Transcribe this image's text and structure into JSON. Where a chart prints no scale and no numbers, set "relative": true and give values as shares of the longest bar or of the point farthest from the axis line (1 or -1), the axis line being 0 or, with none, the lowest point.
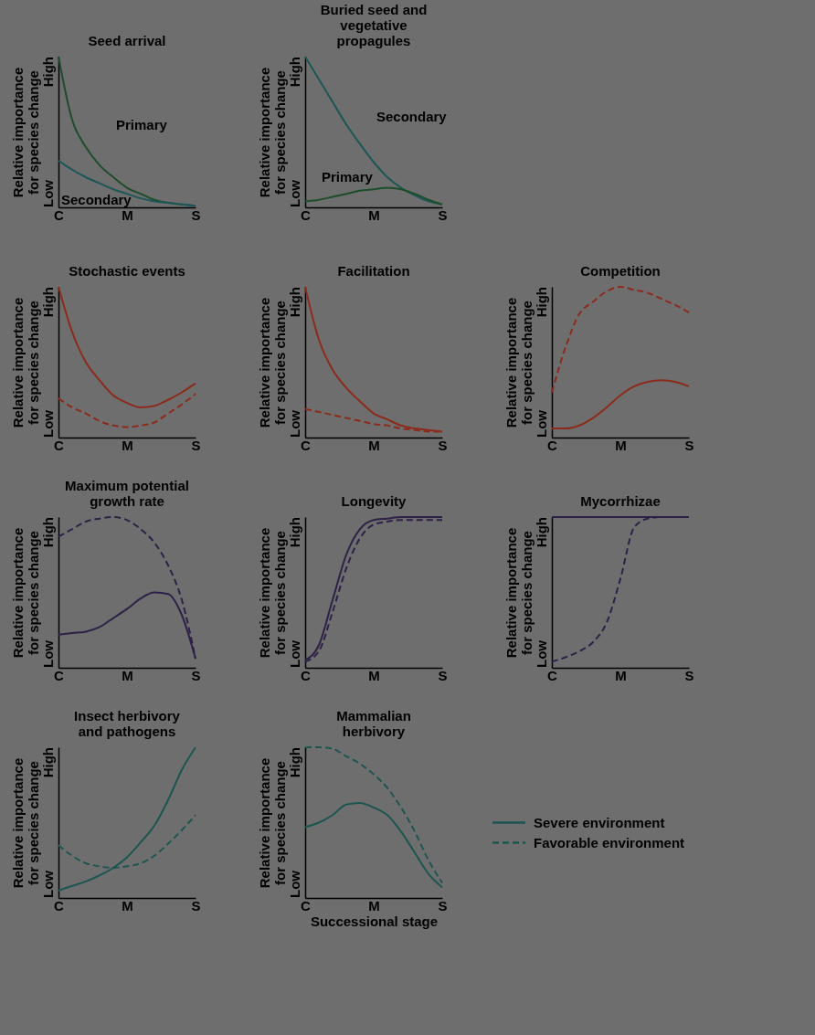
{
  "chart_data": [
    {
      "type": "line",
      "title": "Seed arrival",
      "ylabel": "Relative importance for species change",
      "relative": true,
      "annotations": [
        "Low",
        "High"
      ],
      "categories": [
        "C",
        null,
        null,
        null,
        null,
        "M",
        null,
        null,
        null,
        null,
        "S"
      ],
      "series": [
        {
          "name": "Primary",
          "color": "#1e4d2b",
          "values": [
            1,
            0.58,
            0.4,
            0.28,
            0.2,
            0.13,
            0.09,
            0.05,
            0.03,
            0.02,
            0.01
          ]
        },
        {
          "name": "Secondary",
          "color": "#1d5656",
          "values": [
            0.31,
            0.25,
            0.2,
            0.16,
            0.12,
            0.09,
            0.06,
            0.04,
            0.03,
            0.02,
            0.01
          ]
        }
      ]
    },
    {
      "type": "line",
      "title": "Buried seed and vegetative propagules",
      "ylabel": "Relative importance for species change",
      "relative": true,
      "annotations": [
        "Low",
        "High"
      ],
      "categories": [
        "C",
        null,
        null,
        null,
        null,
        "M",
        null,
        null,
        null,
        null,
        "S"
      ],
      "series": [
        {
          "name": "Secondary",
          "color": "#1d5656",
          "values": [
            1,
            0.85,
            0.7,
            0.55,
            0.42,
            0.3,
            0.2,
            0.13,
            0.08,
            0.04,
            0.02
          ]
        },
        {
          "name": "Primary",
          "color": "#1e4d2b",
          "values": [
            0.04,
            0.05,
            0.07,
            0.09,
            0.11,
            0.12,
            0.13,
            0.12,
            0.09,
            0.05,
            0.02
          ]
        }
      ]
    },
    {
      "type": "line",
      "title": "Stochastic events",
      "ylabel": "Relative importance for species change",
      "relative": true,
      "annotations": [
        "Low",
        "High"
      ],
      "categories": [
        "C",
        null,
        null,
        null,
        null,
        "M",
        null,
        null,
        null,
        null,
        "S"
      ],
      "series": [
        {
          "color": "#8c2b1c",
          "line_style": "solid",
          "values": [
            1,
            0.7,
            0.5,
            0.38,
            0.28,
            0.23,
            0.2,
            0.21,
            0.25,
            0.3,
            0.36
          ]
        },
        {
          "color": "#8c2b1c",
          "line_style": "dashed",
          "values": [
            0.26,
            0.2,
            0.16,
            0.11,
            0.08,
            0.07,
            0.08,
            0.1,
            0.16,
            0.22,
            0.29
          ]
        }
      ]
    },
    {
      "type": "line",
      "title": "Facilitation",
      "ylabel": "Relative importance for species change",
      "relative": true,
      "annotations": [
        "Low",
        "High"
      ],
      "categories": [
        "C",
        null,
        null,
        null,
        null,
        "M",
        null,
        null,
        null,
        null,
        "S"
      ],
      "series": [
        {
          "color": "#8c2b1c",
          "line_style": "solid",
          "values": [
            1,
            0.65,
            0.45,
            0.33,
            0.24,
            0.16,
            0.12,
            0.08,
            0.06,
            0.05,
            0.04
          ]
        },
        {
          "color": "#8c2b1c",
          "line_style": "dashed",
          "values": [
            0.19,
            0.17,
            0.15,
            0.13,
            0.11,
            0.09,
            0.08,
            0.06,
            0.05,
            0.04,
            0.04
          ]
        }
      ]
    },
    {
      "type": "line",
      "title": "Competition",
      "ylabel": "Relative importance for species change",
      "relative": true,
      "annotations": [
        "Low",
        "High"
      ],
      "categories": [
        "C",
        null,
        null,
        null,
        null,
        "M",
        null,
        null,
        null,
        null,
        "S"
      ],
      "series": [
        {
          "color": "#8c2b1c",
          "line_style": "solid",
          "values": [
            0.06,
            0.06,
            0.08,
            0.13,
            0.2,
            0.28,
            0.34,
            0.37,
            0.38,
            0.37,
            0.34
          ]
        },
        {
          "color": "#8c2b1c",
          "line_style": "dashed",
          "values": [
            0.3,
            0.6,
            0.82,
            0.9,
            0.97,
            1,
            0.98,
            0.96,
            0.92,
            0.88,
            0.83
          ]
        }
      ]
    },
    {
      "type": "line",
      "title": "Maximum potential growth rate",
      "ylabel": "Relative importance for species change",
      "relative": true,
      "annotations": [
        "Low",
        "High"
      ],
      "categories": [
        "C",
        null,
        null,
        null,
        null,
        "M",
        null,
        null,
        null,
        null,
        "S"
      ],
      "series": [
        {
          "color": "#2e2147",
          "line_style": "solid",
          "values": [
            0.22,
            0.23,
            0.24,
            0.27,
            0.33,
            0.39,
            0.46,
            0.5,
            0.49,
            0.35,
            0.06
          ]
        },
        {
          "color": "#2e2147",
          "line_style": "dashed",
          "values": [
            0.87,
            0.92,
            0.97,
            0.99,
            1,
            0.98,
            0.92,
            0.83,
            0.68,
            0.45,
            0.06
          ]
        }
      ]
    },
    {
      "type": "line",
      "title": "Longevity",
      "ylabel": "Relative importance for species change",
      "relative": true,
      "annotations": [
        "Low",
        "High"
      ],
      "categories": [
        "C",
        null,
        null,
        null,
        null,
        "M",
        null,
        null,
        null,
        null,
        "S"
      ],
      "series": [
        {
          "color": "#2e2147",
          "line_style": "solid",
          "values": [
            0.05,
            0.15,
            0.45,
            0.75,
            0.92,
            0.98,
            0.99,
            1,
            1,
            1,
            1
          ]
        },
        {
          "color": "#2e2147",
          "line_style": "dashed",
          "values": [
            0.04,
            0.11,
            0.37,
            0.66,
            0.86,
            0.95,
            0.97,
            0.98,
            0.98,
            0.98,
            0.98
          ]
        }
      ]
    },
    {
      "type": "line",
      "title": "Mycorrhizae",
      "ylabel": "Relative importance for species change",
      "relative": true,
      "annotations": [
        "Low",
        "High"
      ],
      "categories": [
        "C",
        null,
        null,
        null,
        null,
        "M",
        null,
        null,
        null,
        null,
        "S"
      ],
      "series": [
        {
          "color": "#2e2147",
          "line_style": "solid",
          "values": [
            1,
            1,
            1,
            1,
            1,
            1,
            1,
            1,
            1,
            1,
            1
          ]
        },
        {
          "color": "#2e2147",
          "line_style": "dashed",
          "values": [
            0.04,
            0.07,
            0.11,
            0.17,
            0.3,
            0.59,
            0.93,
            0.99,
            1,
            1,
            1
          ]
        }
      ]
    },
    {
      "type": "line",
      "title": "Insect herbivory and pathogens",
      "ylabel": "Relative importance for species change",
      "relative": true,
      "annotations": [
        "Low",
        "High"
      ],
      "categories": [
        "C",
        null,
        null,
        null,
        null,
        "M",
        null,
        null,
        null,
        null,
        "S"
      ],
      "series": [
        {
          "color": "#1d5550",
          "line_style": "solid",
          "values": [
            0.05,
            0.08,
            0.11,
            0.15,
            0.2,
            0.27,
            0.37,
            0.48,
            0.65,
            0.85,
            1
          ]
        },
        {
          "color": "#1d5550",
          "line_style": "dashed",
          "values": [
            0.35,
            0.28,
            0.23,
            0.21,
            0.2,
            0.21,
            0.23,
            0.28,
            0.36,
            0.45,
            0.55
          ]
        }
      ]
    },
    {
      "type": "line",
      "title": "Mammalian herbivory",
      "xlabel": "Successional stage",
      "ylabel": "Relative importance for species change",
      "relative": true,
      "annotations": [
        "Low",
        "High"
      ],
      "legend": "right",
      "categories": [
        "C",
        null,
        null,
        null,
        null,
        "M",
        null,
        null,
        null,
        null,
        "S"
      ],
      "series": [
        {
          "name": "Severe environment",
          "color": "#1d5550",
          "line_style": "solid",
          "values": [
            0.47,
            0.5,
            0.55,
            0.62,
            0.63,
            0.6,
            0.55,
            0.44,
            0.3,
            0.16,
            0.07
          ]
        },
        {
          "name": "Favorable environment",
          "color": "#1d5550",
          "line_style": "dashed",
          "values": [
            1,
            1,
            0.99,
            0.94,
            0.89,
            0.82,
            0.73,
            0.6,
            0.44,
            0.25,
            0.1
          ]
        }
      ]
    }
  ]
}
